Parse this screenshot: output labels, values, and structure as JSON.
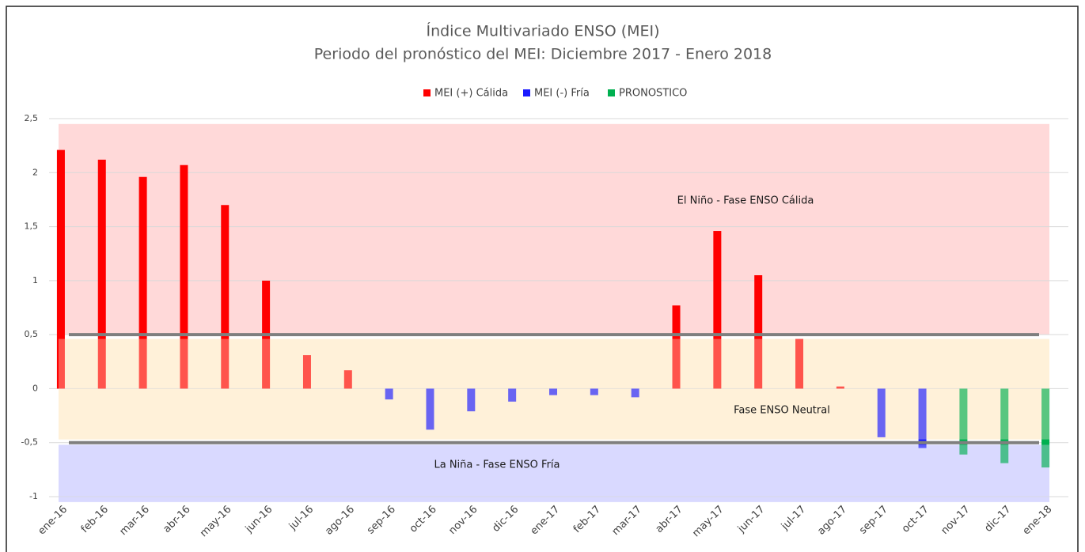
{
  "chart_data": {
    "type": "bar",
    "title": "Índice Multivariado ENSO (MEI)",
    "subtitle": "Periodo del pronóstico del MEI: Diciembre 2017 - Enero 2018",
    "categories": [
      "ene-16",
      "feb-16",
      "mar-16",
      "abr-16",
      "may-16",
      "jun-16",
      "jul-16",
      "ago-16",
      "sep-16",
      "oct-16",
      "nov-16",
      "dic-16",
      "ene-17",
      "feb-17",
      "mar-17",
      "abr-17",
      "may-17",
      "jun-17",
      "jul-17",
      "ago-17",
      "sep-17",
      "oct-17",
      "nov-17",
      "dic-17",
      "ene-18"
    ],
    "series": [
      {
        "name": "MEI (+) Cálida",
        "color": "#ff0000",
        "values": [
          2.21,
          2.12,
          1.96,
          2.07,
          1.7,
          1.0,
          0.31,
          0.17,
          null,
          null,
          null,
          null,
          null,
          null,
          null,
          0.77,
          1.46,
          1.05,
          0.46,
          0.02,
          null,
          null,
          null,
          null,
          null
        ]
      },
      {
        "name": "MEI (-) Fría",
        "color": "#1a1aff",
        "values": [
          null,
          null,
          null,
          null,
          null,
          null,
          null,
          null,
          -0.1,
          -0.38,
          -0.21,
          -0.12,
          -0.06,
          -0.06,
          -0.08,
          null,
          null,
          null,
          null,
          null,
          -0.45,
          -0.55,
          null,
          null,
          null
        ]
      },
      {
        "name": "PRONOSTICO",
        "color": "#00b050",
        "values": [
          null,
          null,
          null,
          null,
          null,
          null,
          null,
          null,
          null,
          null,
          null,
          null,
          null,
          null,
          null,
          null,
          null,
          null,
          null,
          null,
          null,
          null,
          -0.61,
          -0.69,
          -0.73
        ]
      }
    ],
    "ylim": [
      -1,
      2.5
    ],
    "yticks": [
      {
        "value": 2.5,
        "label": "2,5"
      },
      2,
      {
        "value": 1.5,
        "label": "1,5"
      },
      1,
      {
        "value": 0.5,
        "label": "0,5"
      },
      0,
      {
        "value": -0.5,
        "label": "-0,5"
      },
      -1
    ],
    "grid": true,
    "legend": "top",
    "thresholds": [
      0.5,
      -0.5
    ],
    "regions": [
      {
        "label": "El Niño - Fase ENSO Cálida",
        "ymin": 0.5,
        "ymax": 2.45,
        "color": "#ffd9d9"
      },
      {
        "label": "Fase ENSO Neutral",
        "ymin": -0.47,
        "ymax": 0.46,
        "color": "#fff2d9"
      },
      {
        "label": "La Niña - Fase ENSO Fría",
        "ymin": -1.05,
        "ymax": -0.52,
        "color": "#d9d9ff"
      }
    ]
  }
}
